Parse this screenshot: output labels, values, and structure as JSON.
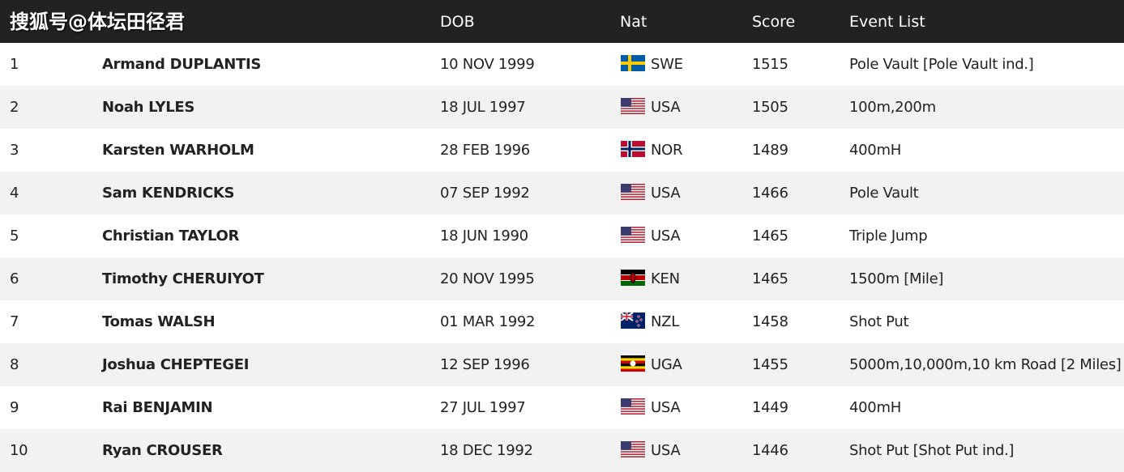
{
  "watermark": "搜狐号@体坛田径君",
  "header": {
    "columns": [
      "DOB",
      "Nat",
      "Score",
      "Event List"
    ]
  },
  "table": {
    "rows": [
      [
        1,
        "Armand DUPLANTIS",
        "10 NOV 1999",
        "SWE",
        1515,
        "Pole Vault [Pole Vault ind.]"
      ],
      [
        2,
        "Noah LYLES",
        "18 JUL 1997",
        "USA",
        1505,
        "100m,200m"
      ],
      [
        3,
        "Karsten WARHOLM",
        "28 FEB 1996",
        "NOR",
        1489,
        "400mH"
      ],
      [
        4,
        "Sam KENDRICKS",
        "07 SEP 1992",
        "USA",
        1466,
        "Pole Vault"
      ],
      [
        5,
        "Christian TAYLOR",
        "18 JUN 1990",
        "USA",
        1465,
        "Triple Jump"
      ],
      [
        6,
        "Timothy CHERUIYOT",
        "20 NOV 1995",
        "KEN",
        1465,
        "1500m [Mile]"
      ],
      [
        7,
        "Tomas WALSH",
        "01 MAR 1992",
        "NZL",
        1458,
        "Shot Put"
      ],
      [
        8,
        "Joshua CHEPTEGEI",
        "12 SEP 1996",
        "UGA",
        1455,
        "5000m,10,000m,10 km Road [2 Miles]"
      ],
      [
        9,
        "Rai BENJAMIN",
        "27 JUL 1997",
        "USA",
        1449,
        "400mH"
      ],
      [
        10,
        "Ryan CROUSER",
        "18 DEC 1992",
        "USA",
        1446,
        "Shot Put [Shot Put ind.]"
      ]
    ]
  }
}
